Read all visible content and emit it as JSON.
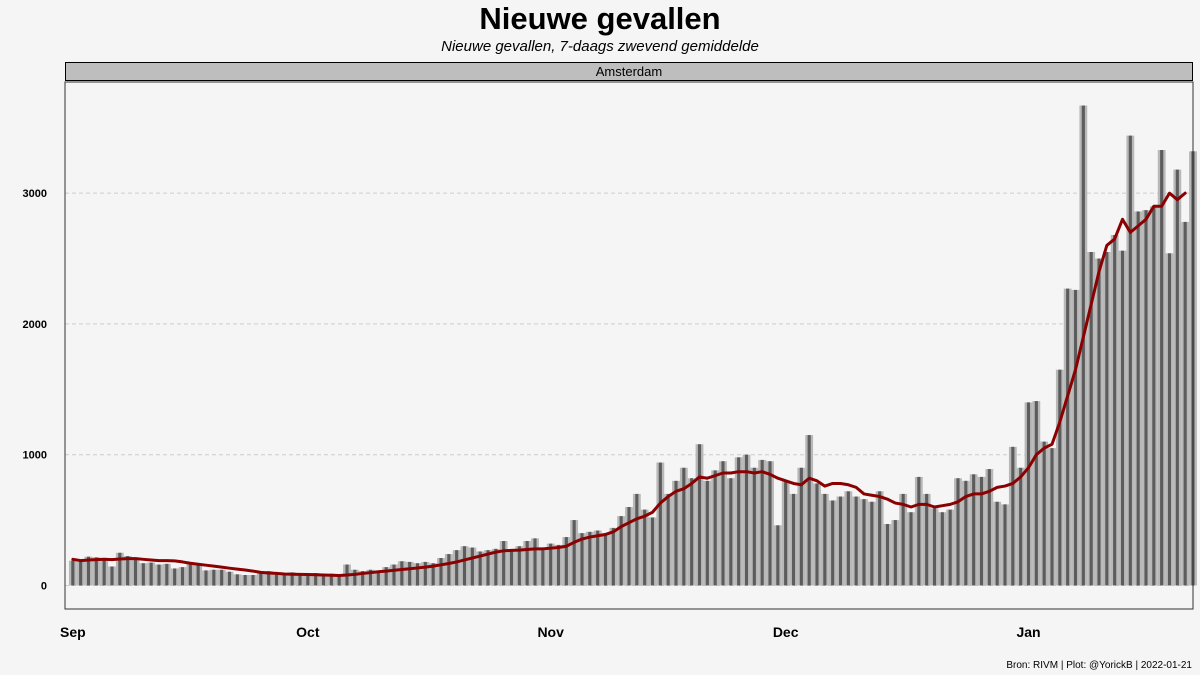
{
  "chart_data": {
    "type": "bar",
    "title": "Nieuwe gevallen",
    "subtitle": "Nieuwe gevallen, 7-daags zwevend gemiddelde",
    "facet": "Amsterdam",
    "caption": "Bron: RIVM | Plot: @YorickB |  2022-01-21",
    "x_start": "2021-09-01",
    "x_end": "2022-01-21",
    "xlim": [
      "2021-08-31",
      "2022-01-22"
    ],
    "ylim": [
      -180,
      3850
    ],
    "grid": "horizontal dashed",
    "yticks": [
      0,
      1000,
      2000,
      3000
    ],
    "xticks": [
      {
        "date": "2021-09-01",
        "label": "Sep"
      },
      {
        "date": "2021-10-01",
        "label": "Oct"
      },
      {
        "date": "2021-11-01",
        "label": "Nov"
      },
      {
        "date": "2021-12-01",
        "label": "Dec"
      },
      {
        "date": "2022-01-01",
        "label": "Jan"
      }
    ],
    "colors": {
      "bar_outer": "#b8b8b8",
      "bar_inner": "#5c5c5c",
      "line": "#8b0000",
      "grid": "#cccccc",
      "panel_border": "#333333"
    },
    "series": [
      {
        "name": "Nieuwe gevallen",
        "type": "bar",
        "values": [
          190,
          180,
          220,
          215,
          200,
          145,
          250,
          225,
          215,
          170,
          175,
          160,
          165,
          130,
          140,
          175,
          160,
          115,
          120,
          120,
          105,
          85,
          80,
          80,
          95,
          110,
          90,
          80,
          100,
          90,
          80,
          95,
          85,
          90,
          70,
          160,
          120,
          110,
          120,
          110,
          140,
          160,
          185,
          180,
          170,
          180,
          170,
          210,
          240,
          270,
          300,
          290,
          260,
          270,
          280,
          340,
          260,
          300,
          340,
          360,
          270,
          320,
          310,
          370,
          500,
          400,
          410,
          420,
          400,
          440,
          530,
          600,
          700,
          580,
          520,
          940,
          700,
          800,
          900,
          820,
          1080,
          800,
          880,
          950,
          820,
          980,
          1000,
          900,
          960,
          950,
          460,
          800,
          700,
          900,
          1150,
          780,
          700,
          650,
          680,
          720,
          680,
          660,
          640,
          720,
          470,
          500,
          700,
          560,
          830,
          700,
          590,
          560,
          580,
          820,
          800,
          850,
          830,
          890,
          640,
          620,
          1060,
          900,
          1400,
          1410,
          1100,
          1050,
          1650,
          2270,
          2260,
          3670,
          2550,
          2500,
          2550,
          2680,
          2560,
          3440,
          2860,
          2870,
          2900,
          3330,
          2540,
          3180,
          2780,
          3320
        ]
      },
      {
        "name": "7-daags zwevend gemiddelde",
        "type": "line",
        "values": [
          200,
          190,
          195,
          198,
          200,
          198,
          202,
          205,
          205,
          200,
          195,
          190,
          190,
          188,
          180,
          170,
          162,
          155,
          148,
          140,
          132,
          125,
          118,
          110,
          100,
          95,
          92,
          88,
          86,
          85,
          84,
          82,
          80,
          78,
          76,
          80,
          85,
          92,
          98,
          105,
          110,
          116,
          122,
          128,
          134,
          140,
          148,
          158,
          168,
          180,
          195,
          210,
          225,
          240,
          255,
          265,
          268,
          270,
          275,
          280,
          280,
          285,
          290,
          300,
          330,
          355,
          370,
          380,
          390,
          410,
          450,
          480,
          510,
          530,
          560,
          630,
          680,
          720,
          740,
          780,
          830,
          820,
          840,
          860,
          860,
          870,
          870,
          860,
          870,
          850,
          820,
          800,
          780,
          770,
          820,
          800,
          760,
          780,
          780,
          770,
          750,
          700,
          690,
          680,
          660,
          630,
          620,
          600,
          620,
          620,
          600,
          610,
          620,
          640,
          680,
          700,
          700,
          720,
          750,
          760,
          780,
          830,
          900,
          1000,
          1050,
          1080,
          1250,
          1450,
          1650,
          1900,
          2150,
          2400,
          2600,
          2650,
          2800,
          2700,
          2750,
          2800,
          2900,
          2900,
          3000,
          2950,
          3000
        ]
      }
    ]
  }
}
